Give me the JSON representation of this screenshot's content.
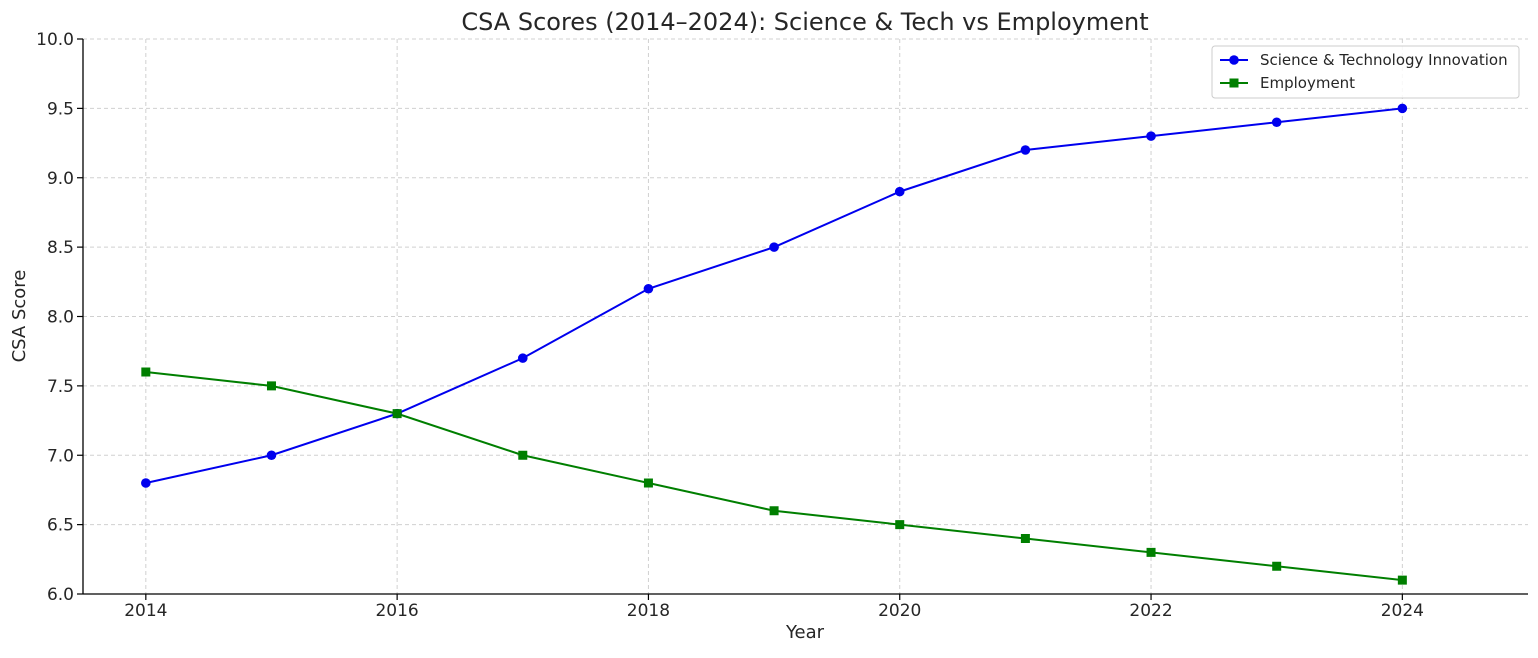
{
  "chart_data": {
    "type": "line",
    "title": "CSA Scores (2014–2024): Science & Tech vs Employment",
    "xlabel": "Year",
    "ylabel": "CSA Score",
    "x": [
      2014,
      2015,
      2016,
      2017,
      2018,
      2019,
      2020,
      2021,
      2022,
      2023,
      2024
    ],
    "xticks": [
      "2014",
      "2016",
      "2018",
      "2020",
      "2022",
      "2024"
    ],
    "yticks": [
      "6.0",
      "6.5",
      "7.0",
      "7.5",
      "8.0",
      "8.5",
      "9.0",
      "9.5",
      "10.0"
    ],
    "xlim": [
      2013.5,
      2025.0
    ],
    "ylim": [
      6.0,
      10.0
    ],
    "grid": true,
    "legend_position": "top-right",
    "series": [
      {
        "name": "Science & Technology Innovation",
        "color": "#0000ee",
        "marker": "circle",
        "values": [
          6.8,
          7.0,
          7.3,
          7.7,
          8.2,
          8.5,
          8.9,
          9.2,
          9.3,
          9.4,
          9.5
        ]
      },
      {
        "name": "Employment",
        "color": "#007f00",
        "marker": "square",
        "values": [
          7.6,
          7.5,
          7.3,
          7.0,
          6.8,
          6.6,
          6.5,
          6.4,
          6.3,
          6.2,
          6.1
        ]
      }
    ]
  }
}
